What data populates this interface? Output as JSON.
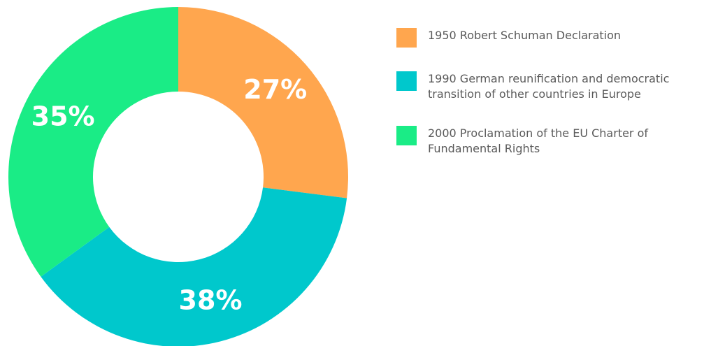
{
  "chart_data": {
    "type": "pie",
    "categories": [
      "1950 Robert Schuman Declaration",
      "1990 German reunification and democratic transition of other countries in Europe",
      "2000 Proclamation of the EU Charter of Fundamental Rights"
    ],
    "values": [
      27,
      38,
      35
    ],
    "value_labels": [
      "27%",
      "38%",
      "35%"
    ],
    "colors": [
      "#ffa64e",
      "#00c8cc",
      "#1aec86"
    ]
  }
}
